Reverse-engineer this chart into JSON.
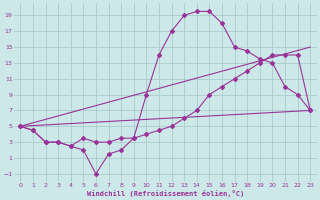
{
  "xlabel": "Windchill (Refroidissement éolien,°C)",
  "background_color": "#cce8e8",
  "grid_color": "#aacccc",
  "line_color": "#993399",
  "xlim": [
    -0.5,
    23.5
  ],
  "ylim": [
    -2,
    20.5
  ],
  "xticks": [
    0,
    1,
    2,
    3,
    4,
    5,
    6,
    7,
    8,
    9,
    10,
    11,
    12,
    13,
    14,
    15,
    16,
    17,
    18,
    19,
    20,
    21,
    22,
    23
  ],
  "yticks": [
    -1,
    1,
    3,
    5,
    7,
    9,
    11,
    13,
    15,
    17,
    19
  ],
  "line1_x": [
    0,
    1,
    2,
    3,
    4,
    5,
    6,
    7,
    8,
    9,
    10,
    11,
    12,
    13,
    14,
    15,
    16,
    17,
    18,
    19,
    20,
    21,
    22,
    23
  ],
  "line1_y": [
    5,
    4.5,
    3,
    3,
    2.5,
    2,
    -1,
    1.5,
    2,
    3.5,
    9,
    14,
    17,
    19,
    19.5,
    19.5,
    18,
    15,
    14.5,
    13.5,
    13,
    10,
    9,
    7
  ],
  "line2_x": [
    0,
    1,
    2,
    3,
    4,
    5,
    6,
    7,
    8,
    9,
    10,
    11,
    12,
    13,
    14,
    15,
    16,
    17,
    18,
    19,
    20,
    21,
    22,
    23
  ],
  "line2_y": [
    5,
    4.5,
    3,
    3,
    2.5,
    3.5,
    3,
    3,
    3.5,
    3.5,
    4,
    4.5,
    5,
    6,
    7,
    9,
    10,
    11,
    12,
    13,
    14,
    14,
    14,
    7
  ],
  "line3_x": [
    0,
    23
  ],
  "line3_y": [
    5,
    15
  ],
  "line4_x": [
    0,
    23
  ],
  "line4_y": [
    5,
    7
  ]
}
